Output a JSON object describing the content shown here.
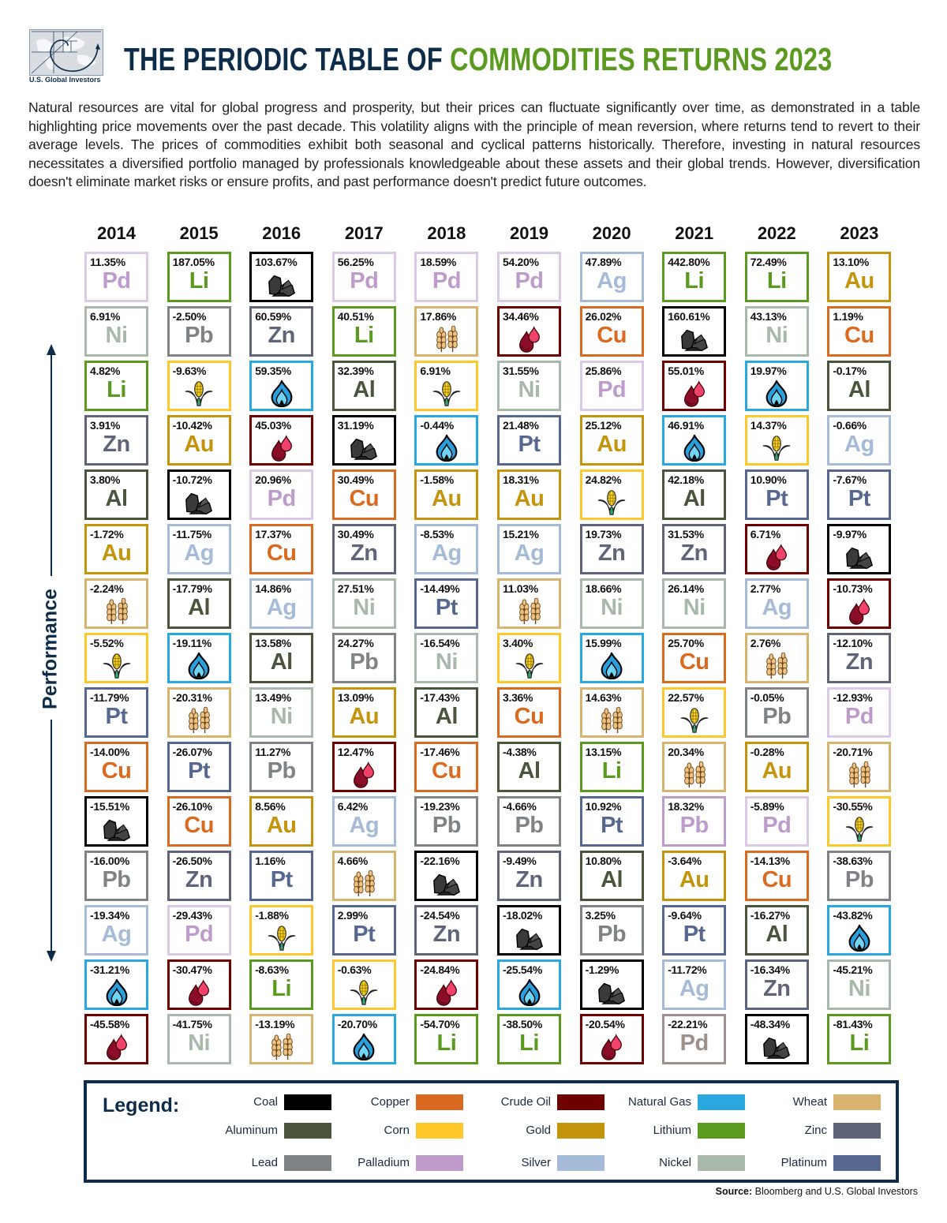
{
  "logo": {
    "text": "U.S. Global Investors"
  },
  "header": {
    "title_part1": "THE PERIODIC TABLE OF ",
    "title_part2": "COMMODITIES RETURNS 2023"
  },
  "intro": "Natural resources are vital for global progress and prosperity, but their prices can fluctuate significantly over time, as demonstrated in a table highlighting price movements over the past decade. This volatility aligns with the principle of mean reversion, where returns tend to revert to their average levels. The prices of commodities exhibit both seasonal and cyclical patterns historically. Therefore, investing in natural resources necessitates a diversified portfolio managed by professionals knowledgeable about these assets and their global trends. However, diversification doesn't eliminate market risks or ensure profits, and past performance doesn't predict future outcomes.",
  "axis_label": "Performance",
  "colors": {
    "coal": "#000000",
    "Cu": "#d96a1f",
    "oil": "#6e0000",
    "gas": "#29a8e0",
    "wheat": "#d9b46e",
    "Al": "#4a553c",
    "corn": "#ffc82a",
    "Au": "#c4950c",
    "Li": "#5a9a1f",
    "Zn": "#5f6478",
    "Pb": "#808385",
    "Pd": "#bf9bcb",
    "Ag": "#a6bbd8",
    "Ni": "#a8b9ac",
    "Pt": "#56688f",
    "Pd_light": "#dcc9e6",
    "Pb_brown": "#9c918c"
  },
  "chart_data": {
    "type": "table",
    "title": "THE PERIODIC TABLE OF COMMODITIES RETURNS 2023",
    "ylabel": "Performance",
    "columns": [
      {
        "year": "2014",
        "cells": [
          {
            "v": "11.35%",
            "s": "Pd"
          },
          {
            "v": "6.91%",
            "s": "Ni"
          },
          {
            "v": "4.82%",
            "s": "Li"
          },
          {
            "v": "3.91%",
            "s": "Zn"
          },
          {
            "v": "3.80%",
            "s": "Al"
          },
          {
            "v": "-1.72%",
            "s": "Au"
          },
          {
            "v": "-2.24%",
            "icon": "wheat"
          },
          {
            "v": "-5.52%",
            "icon": "corn"
          },
          {
            "v": "-11.79%",
            "s": "Pt"
          },
          {
            "v": "-14.00%",
            "s": "Cu"
          },
          {
            "v": "-15.51%",
            "icon": "coal"
          },
          {
            "v": "-16.00%",
            "s": "Pb"
          },
          {
            "v": "-19.34%",
            "s": "Ag"
          },
          {
            "v": "-31.21%",
            "icon": "gas"
          },
          {
            "v": "-45.58%",
            "icon": "oil"
          }
        ]
      },
      {
        "year": "2015",
        "cells": [
          {
            "v": "187.05%",
            "s": "Li"
          },
          {
            "v": "-2.50%",
            "s": "Pb"
          },
          {
            "v": "-9.63%",
            "icon": "corn"
          },
          {
            "v": "-10.42%",
            "s": "Au"
          },
          {
            "v": "-10.72%",
            "icon": "coal"
          },
          {
            "v": "-11.75%",
            "s": "Ag"
          },
          {
            "v": "-17.79%",
            "s": "Al"
          },
          {
            "v": "-19.11%",
            "icon": "gas"
          },
          {
            "v": "-20.31%",
            "icon": "wheat"
          },
          {
            "v": "-26.07%",
            "s": "Pt"
          },
          {
            "v": "-26.10%",
            "s": "Cu"
          },
          {
            "v": "-26.50%",
            "s": "Zn"
          },
          {
            "v": "-29.43%",
            "s": "Pd"
          },
          {
            "v": "-30.47%",
            "icon": "oil"
          },
          {
            "v": "-41.75%",
            "s": "Ni"
          }
        ]
      },
      {
        "year": "2016",
        "cells": [
          {
            "v": "103.67%",
            "icon": "coal"
          },
          {
            "v": "60.59%",
            "s": "Zn"
          },
          {
            "v": "59.35%",
            "icon": "gas"
          },
          {
            "v": "45.03%",
            "icon": "oil"
          },
          {
            "v": "20.96%",
            "s": "Pd"
          },
          {
            "v": "17.37%",
            "s": "Cu"
          },
          {
            "v": "14.86%",
            "s": "Ag"
          },
          {
            "v": "13.58%",
            "s": "Al"
          },
          {
            "v": "13.49%",
            "s": "Ni"
          },
          {
            "v": "11.27%",
            "s": "Pb"
          },
          {
            "v": "8.56%",
            "s": "Au"
          },
          {
            "v": "1.16%",
            "s": "Pt"
          },
          {
            "v": "-1.88%",
            "icon": "corn"
          },
          {
            "v": "-8.63%",
            "s": "Li"
          },
          {
            "v": "-13.19%",
            "icon": "wheat"
          }
        ]
      },
      {
        "year": "2017",
        "cells": [
          {
            "v": "56.25%",
            "s": "Pd"
          },
          {
            "v": "40.51%",
            "s": "Li"
          },
          {
            "v": "32.39%",
            "s": "Al"
          },
          {
            "v": "31.19%",
            "icon": "coal"
          },
          {
            "v": "30.49%",
            "s": "Cu"
          },
          {
            "v": "30.49%",
            "s": "Zn"
          },
          {
            "v": "27.51%",
            "s": "Ni"
          },
          {
            "v": "24.27%",
            "s": "Pb"
          },
          {
            "v": "13.09%",
            "s": "Au"
          },
          {
            "v": "12.47%",
            "icon": "oil"
          },
          {
            "v": "6.42%",
            "s": "Ag"
          },
          {
            "v": "4.66%",
            "icon": "wheat"
          },
          {
            "v": "2.99%",
            "s": "Pt"
          },
          {
            "v": "-0.63%",
            "icon": "corn"
          },
          {
            "v": "-20.70%",
            "icon": "gas"
          }
        ]
      },
      {
        "year": "2018",
        "cells": [
          {
            "v": "18.59%",
            "s": "Pd"
          },
          {
            "v": "17.86%",
            "icon": "wheat"
          },
          {
            "v": "6.91%",
            "icon": "corn"
          },
          {
            "v": "-0.44%",
            "icon": "gas"
          },
          {
            "v": "-1.58%",
            "s": "Au"
          },
          {
            "v": "-8.53%",
            "s": "Ag"
          },
          {
            "v": "-14.49%",
            "s": "Pt"
          },
          {
            "v": "-16.54%",
            "s": "Ni"
          },
          {
            "v": "-17.43%",
            "s": "Al"
          },
          {
            "v": "-17.46%",
            "s": "Cu"
          },
          {
            "v": "-19.23%",
            "s": "Pb"
          },
          {
            "v": "-22.16%",
            "icon": "coal"
          },
          {
            "v": "-24.54%",
            "s": "Zn"
          },
          {
            "v": "-24.84%",
            "icon": "oil"
          },
          {
            "v": "-54.70%",
            "s": "Li"
          }
        ]
      },
      {
        "year": "2019",
        "cells": [
          {
            "v": "54.20%",
            "s": "Pd"
          },
          {
            "v": "34.46%",
            "icon": "oil"
          },
          {
            "v": "31.55%",
            "s": "Ni"
          },
          {
            "v": "21.48%",
            "s": "Pt"
          },
          {
            "v": "18.31%",
            "s": "Au"
          },
          {
            "v": "15.21%",
            "s": "Ag"
          },
          {
            "v": "11.03%",
            "icon": "wheat"
          },
          {
            "v": "3.40%",
            "icon": "corn"
          },
          {
            "v": "3.36%",
            "s": "Cu"
          },
          {
            "v": "-4.38%",
            "s": "Al"
          },
          {
            "v": "-4.66%",
            "s": "Pb"
          },
          {
            "v": "-9.49%",
            "s": "Zn"
          },
          {
            "v": "-18.02%",
            "icon": "coal"
          },
          {
            "v": "-25.54%",
            "icon": "gas"
          },
          {
            "v": "-38.50%",
            "s": "Li"
          }
        ]
      },
      {
        "year": "2020",
        "cells": [
          {
            "v": "47.89%",
            "s": "Ag"
          },
          {
            "v": "26.02%",
            "s": "Cu"
          },
          {
            "v": "25.86%",
            "s": "Pd"
          },
          {
            "v": "25.12%",
            "s": "Au"
          },
          {
            "v": "24.82%",
            "icon": "corn"
          },
          {
            "v": "19.73%",
            "s": "Zn"
          },
          {
            "v": "18.66%",
            "s": "Ni"
          },
          {
            "v": "15.99%",
            "icon": "gas"
          },
          {
            "v": "14.63%",
            "icon": "wheat"
          },
          {
            "v": "13.15%",
            "s": "Li"
          },
          {
            "v": "10.92%",
            "s": "Pt"
          },
          {
            "v": "10.80%",
            "s": "Al"
          },
          {
            "v": "3.25%",
            "s": "Pb"
          },
          {
            "v": "-1.29%",
            "icon": "coal"
          },
          {
            "v": "-20.54%",
            "icon": "oil"
          }
        ]
      },
      {
        "year": "2021",
        "cells": [
          {
            "v": "442.80%",
            "s": "Li"
          },
          {
            "v": "160.61%",
            "icon": "coal"
          },
          {
            "v": "55.01%",
            "icon": "oil"
          },
          {
            "v": "46.91%",
            "icon": "gas"
          },
          {
            "v": "42.18%",
            "s": "Al"
          },
          {
            "v": "31.53%",
            "s": "Zn"
          },
          {
            "v": "26.14%",
            "s": "Ni"
          },
          {
            "v": "25.70%",
            "s": "Cu"
          },
          {
            "v": "22.57%",
            "icon": "corn"
          },
          {
            "v": "20.34%",
            "icon": "wheat"
          },
          {
            "v": "18.32%",
            "s": "Pb",
            "c": "Pd"
          },
          {
            "v": "-3.64%",
            "s": "Au"
          },
          {
            "v": "-9.64%",
            "s": "Pt"
          },
          {
            "v": "-11.72%",
            "s": "Ag"
          },
          {
            "v": "-22.21%",
            "s": "Pd",
            "c": "Pb_brown"
          }
        ]
      },
      {
        "year": "2022",
        "cells": [
          {
            "v": "72.49%",
            "s": "Li"
          },
          {
            "v": "43.13%",
            "s": "Ni"
          },
          {
            "v": "19.97%",
            "icon": "gas"
          },
          {
            "v": "14.37%",
            "icon": "corn"
          },
          {
            "v": "10.90%",
            "s": "Pt"
          },
          {
            "v": "6.71%",
            "icon": "oil"
          },
          {
            "v": "2.77%",
            "s": "Ag"
          },
          {
            "v": "2.76%",
            "icon": "wheat"
          },
          {
            "v": "-0.05%",
            "s": "Pb"
          },
          {
            "v": "-0.28%",
            "s": "Au"
          },
          {
            "v": "-5.89%",
            "s": "Pd"
          },
          {
            "v": "-14.13%",
            "s": "Cu"
          },
          {
            "v": "-16.27%",
            "s": "Al"
          },
          {
            "v": "-16.34%",
            "s": "Zn"
          },
          {
            "v": "-48.34%",
            "icon": "coal"
          }
        ]
      },
      {
        "year": "2023",
        "cells": [
          {
            "v": "13.10%",
            "s": "Au"
          },
          {
            "v": "1.19%",
            "s": "Cu"
          },
          {
            "v": "-0.17%",
            "s": "Al"
          },
          {
            "v": "-0.66%",
            "s": "Ag"
          },
          {
            "v": "-7.67%",
            "s": "Pt"
          },
          {
            "v": "-9.97%",
            "icon": "coal"
          },
          {
            "v": "-10.73%",
            "icon": "oil"
          },
          {
            "v": "-12.10%",
            "s": "Zn"
          },
          {
            "v": "-12.93%",
            "s": "Pd"
          },
          {
            "v": "-20.71%",
            "icon": "wheat"
          },
          {
            "v": "-30.55%",
            "icon": "corn"
          },
          {
            "v": "-38.63%",
            "s": "Pb"
          },
          {
            "v": "-43.82%",
            "icon": "gas"
          },
          {
            "v": "-45.21%",
            "s": "Ni"
          },
          {
            "v": "-81.43%",
            "s": "Li"
          }
        ]
      }
    ]
  },
  "legend": {
    "title": "Legend:",
    "items": [
      {
        "name": "Coal",
        "color": "#000000"
      },
      {
        "name": "Copper",
        "color": "#d96a1f"
      },
      {
        "name": "Crude Oil",
        "color": "#6e0000"
      },
      {
        "name": "Natural Gas",
        "color": "#29a8e0"
      },
      {
        "name": "Wheat",
        "color": "#d9b46e"
      },
      {
        "name": "Aluminum",
        "color": "#4a553c"
      },
      {
        "name": "Corn",
        "color": "#ffc82a"
      },
      {
        "name": "Gold",
        "color": "#c4950c"
      },
      {
        "name": "Lithium",
        "color": "#5a9a1f"
      },
      {
        "name": "Zinc",
        "color": "#5f6478"
      },
      {
        "name": "Lead",
        "color": "#808385"
      },
      {
        "name": "Palladium",
        "color": "#bf9bcb"
      },
      {
        "name": "Silver",
        "color": "#a6bbd8"
      },
      {
        "name": "Nickel",
        "color": "#a8b9ac"
      },
      {
        "name": "Platinum",
        "color": "#56688f"
      }
    ]
  },
  "source": {
    "label": "Source:",
    "text": " Bloomberg and U.S. Global Investors"
  }
}
